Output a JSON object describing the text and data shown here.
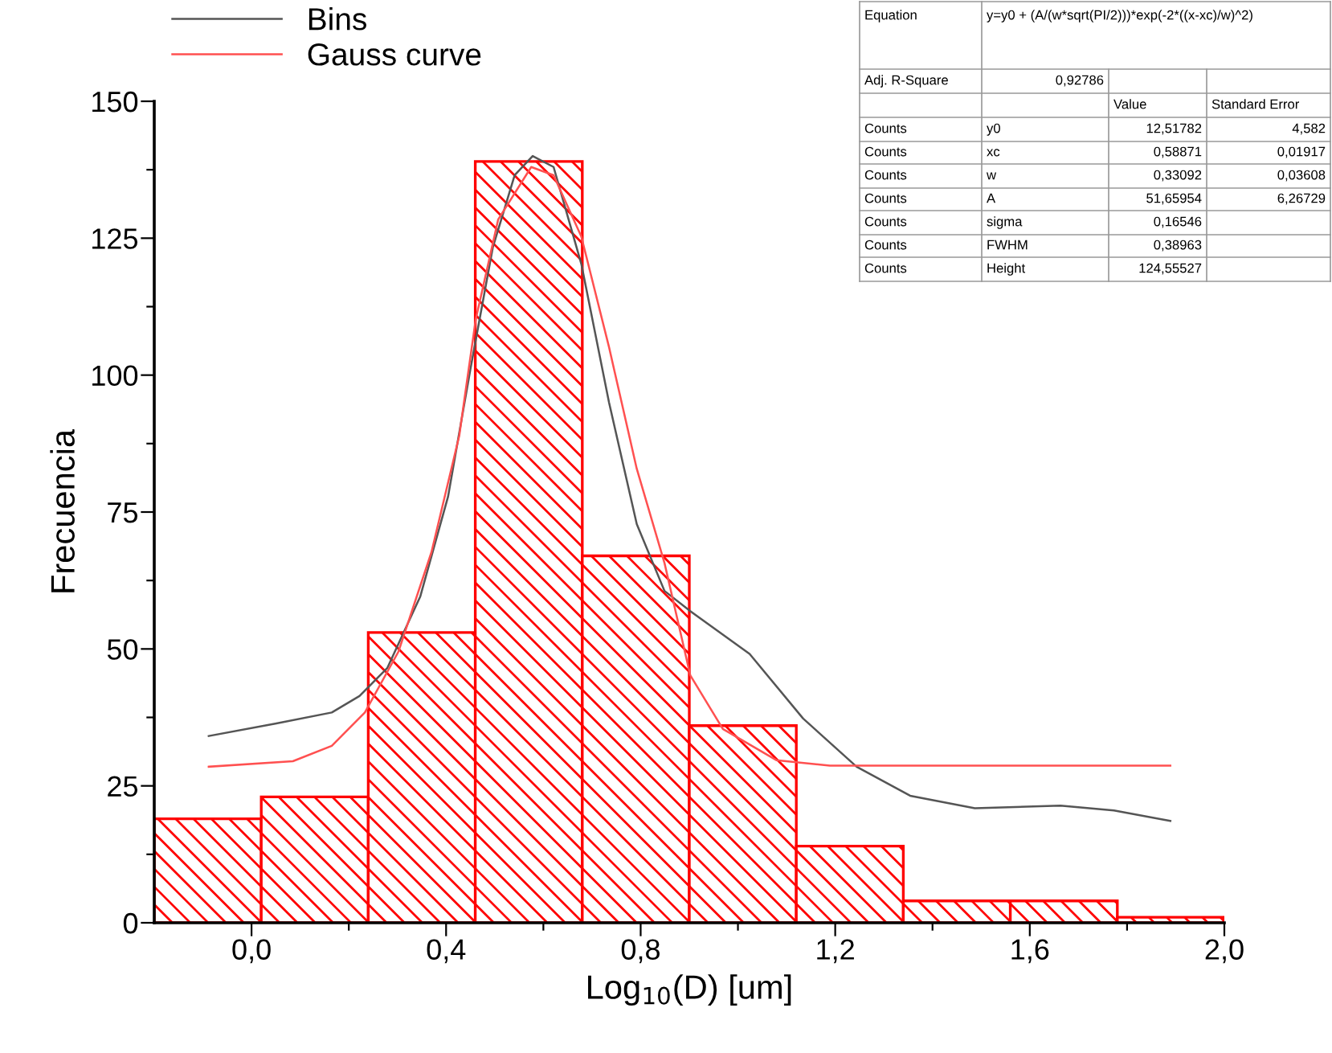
{
  "chart_data": {
    "type": "histogram",
    "xlabel": "Log$_{10}$(D) [um]",
    "ylabel": "Frecuencia",
    "bins": [
      -0.2,
      0.02,
      0.24,
      0.46,
      0.68,
      0.9,
      1.12,
      1.34,
      1.56,
      1.78,
      2.0
    ],
    "values": [
      19,
      23,
      53,
      139,
      67,
      36,
      14,
      4,
      4,
      1
    ],
    "color": "#ff0000",
    "series": [
      {
        "name": "Bins",
        "type": "line",
        "color": "#555555",
        "x": [
          -0.088,
          0.051,
          0.165,
          0.222,
          0.279,
          0.347,
          0.404,
          0.45,
          0.496,
          0.541,
          0.578,
          0.621,
          0.678,
          0.735,
          0.792,
          0.849,
          0.902,
          1.024,
          1.134,
          1.244,
          1.354,
          1.487,
          1.663,
          1.773,
          1.889
        ],
        "values": [
          34.1,
          36.4,
          38.4,
          41.4,
          46.5,
          59.6,
          77.8,
          101.1,
          123.3,
          136.5,
          140.0,
          138.0,
          120.3,
          95.0,
          72.8,
          60.6,
          56.9,
          49.1,
          37.3,
          28.5,
          23.2,
          20.9,
          21.4,
          20.5,
          18.6
        ]
      },
      {
        "name": "Gauss curve",
        "type": "line",
        "color": "#ff5050",
        "x": [
          -0.088,
          0.085,
          0.165,
          0.233,
          0.302,
          0.37,
          0.427,
          0.461,
          0.507,
          0.575,
          0.621,
          0.678,
          0.735,
          0.792,
          0.849,
          0.902,
          0.969,
          1.079,
          1.189,
          1.889
        ],
        "values": [
          28.5,
          29.5,
          32.3,
          38.4,
          49.5,
          67.7,
          88.9,
          110.2,
          128.4,
          138.0,
          136.5,
          125.3,
          105.1,
          82.9,
          65.7,
          45.2,
          35.4,
          29.7,
          28.7,
          28.7
        ]
      }
    ],
    "xlim": [
      -0.2,
      2.0
    ],
    "xticks": [
      {
        "value": 0.0,
        "label": "0,0"
      },
      {
        "value": 0.2,
        "label": null
      },
      {
        "value": 0.4,
        "label": "0,4"
      },
      {
        "value": 0.6,
        "label": null
      },
      {
        "value": 0.8,
        "label": "0,8"
      },
      {
        "value": 1.0,
        "label": null
      },
      {
        "value": 1.2,
        "label": "1,2"
      },
      {
        "value": 1.4,
        "label": null
      },
      {
        "value": 1.6,
        "label": "1,6"
      },
      {
        "value": 1.8,
        "label": null
      },
      {
        "value": 2.0,
        "label": "2,0"
      }
    ],
    "ylim": [
      0,
      150
    ],
    "yticks": [
      0,
      {
        "value": 12.5,
        "label": null
      },
      25,
      {
        "value": 37.5,
        "label": null
      },
      50,
      {
        "value": 62.5,
        "label": null
      },
      75,
      {
        "value": 87.5,
        "label": null
      },
      100,
      {
        "value": 112.5,
        "label": null
      },
      125,
      {
        "value": 137.5,
        "label": null
      },
      150
    ],
    "legend": "top left",
    "grid": false,
    "annotations": [
      "Equation",
      "y=y0 + (A/(w*sqrt(PI/2)))*exp(-2*((x-xc)/w)^2)",
      "Adj. R-Square",
      "0,92786",
      "Value",
      "Standard Error",
      "Counts",
      "y0",
      "12,51782",
      "4,582",
      "Counts",
      "xc",
      "0,58871",
      "0,01917",
      "Counts",
      "w",
      "0,33092",
      "0,03608",
      "Counts",
      "A",
      "51,65954",
      "6,26729",
      "Counts",
      "sigma",
      "0,16546",
      "Counts",
      "FWHM",
      "0,38963",
      "Counts",
      "Height",
      "124,55527"
    ]
  }
}
